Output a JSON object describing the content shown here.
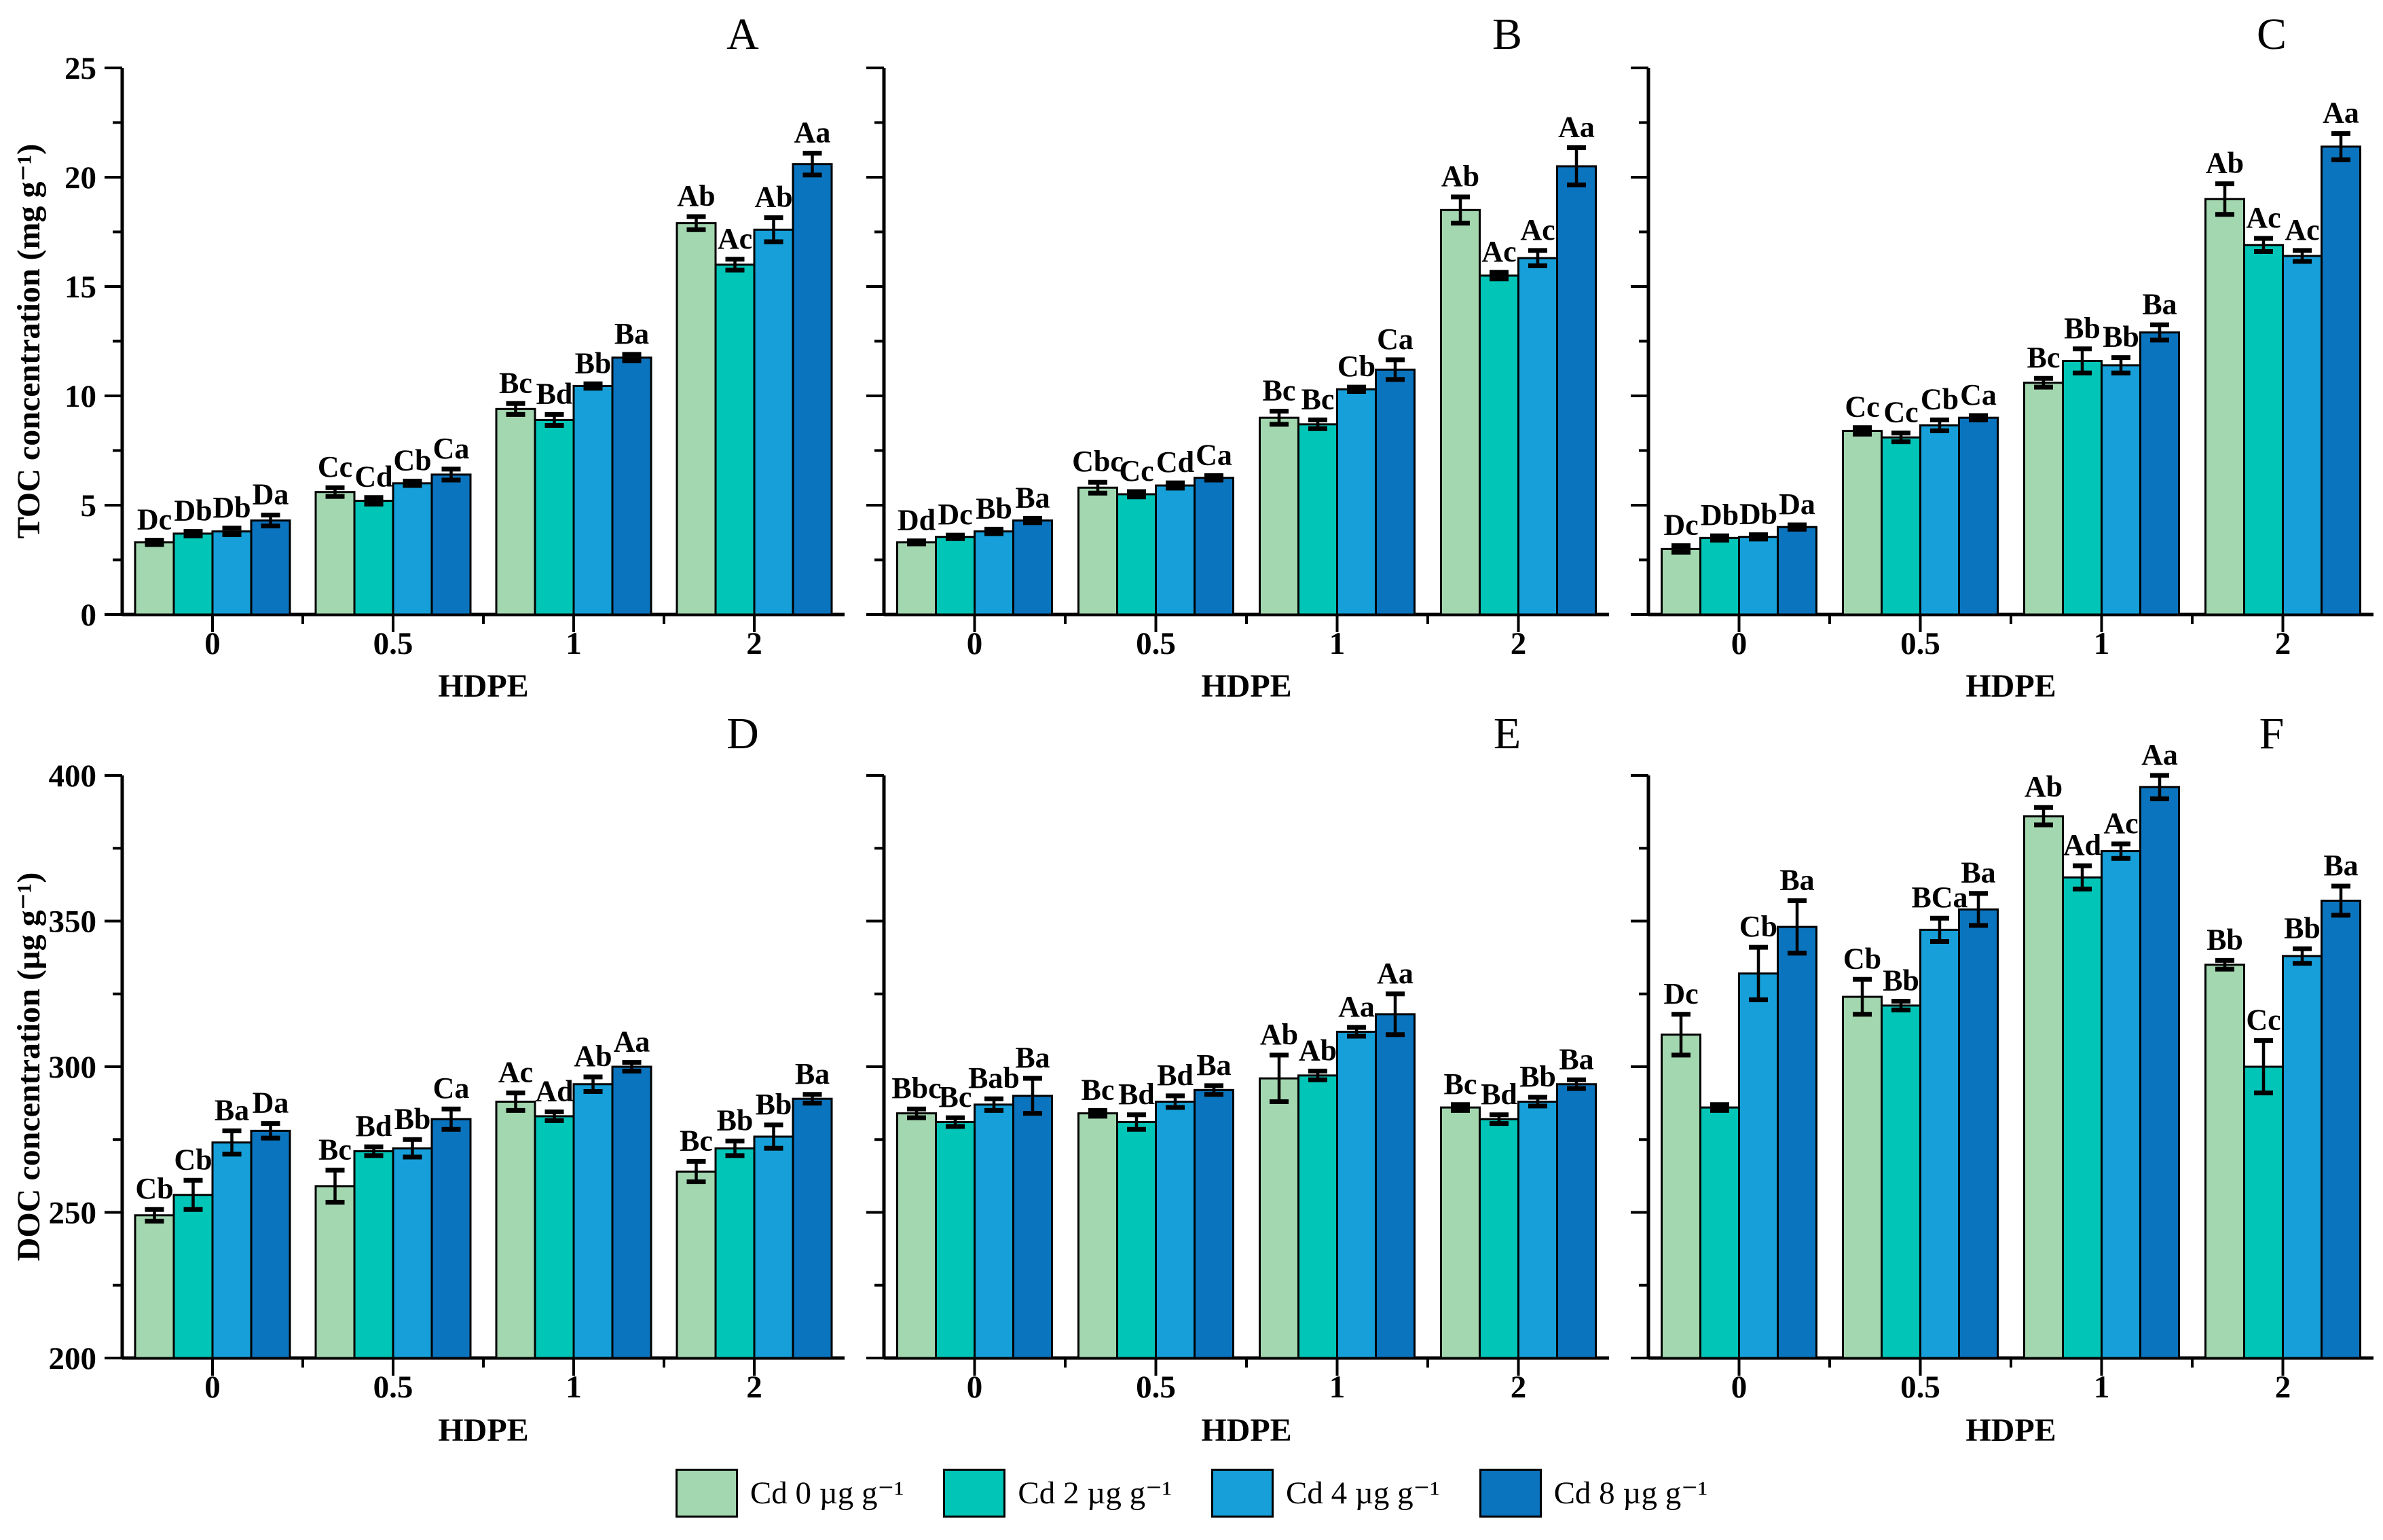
{
  "figure": {
    "background": "#ffffff",
    "axis_color": "#000000",
    "legend": [
      {
        "label": "Cd 0 µg g⁻¹",
        "color": "#a3d7b0"
      },
      {
        "label": "Cd 2 µg g⁻¹",
        "color": "#00c5b7"
      },
      {
        "label": "Cd 4 µg g⁻¹",
        "color": "#169fd8"
      },
      {
        "label": "Cd 8 µg g⁻¹",
        "color": "#0b74be"
      }
    ]
  },
  "chart_data": [
    {
      "id": "A",
      "type": "bar",
      "title": "A",
      "ylabel": "TOC concentration (mg g⁻¹)",
      "xlabel": "HDPE",
      "categories": [
        "0",
        "0.5",
        "1",
        "2"
      ],
      "ylim": [
        0,
        25
      ],
      "ytick_major": 5,
      "ytick_minor": 2.5,
      "show_y_tick_labels": true,
      "series": [
        {
          "name": "Cd 0 µg g⁻¹",
          "values": [
            3.3,
            5.6,
            9.4,
            17.9
          ],
          "errors": [
            0.1,
            0.2,
            0.25,
            0.3
          ],
          "letters": [
            "Dc",
            "Cc",
            "Bc",
            "Ab"
          ]
        },
        {
          "name": "Cd 2 µg g⁻¹",
          "values": [
            3.7,
            5.2,
            8.9,
            16.0
          ],
          "errors": [
            0.1,
            0.15,
            0.25,
            0.25
          ],
          "letters": [
            "Db",
            "Cd",
            "Bd",
            "Ac"
          ]
        },
        {
          "name": "Cd 4 µg g⁻¹",
          "values": [
            3.8,
            6.0,
            10.45,
            17.6
          ],
          "errors": [
            0.15,
            0.1,
            0.1,
            0.55
          ],
          "letters": [
            "Db",
            "Cb",
            "Bb",
            "Ab"
          ]
        },
        {
          "name": "Cd 8 µg g⁻¹",
          "values": [
            4.3,
            6.4,
            11.75,
            20.6
          ],
          "errors": [
            0.25,
            0.25,
            0.15,
            0.5
          ],
          "letters": [
            "Da",
            "Ca",
            "Ba",
            "Aa"
          ]
        }
      ]
    },
    {
      "id": "B",
      "type": "bar",
      "title": "B",
      "ylabel": "",
      "xlabel": "HDPE",
      "categories": [
        "0",
        "0.5",
        "1",
        "2"
      ],
      "ylim": [
        0,
        25
      ],
      "ytick_major": 5,
      "ytick_minor": 2.5,
      "show_y_tick_labels": false,
      "series": [
        {
          "name": "Cd 0 µg g⁻¹",
          "values": [
            3.3,
            5.8,
            9.0,
            18.5
          ],
          "errors": [
            0.07,
            0.25,
            0.3,
            0.6
          ],
          "letters": [
            "Dd",
            "Cbc",
            "Bc",
            "Ab"
          ]
        },
        {
          "name": "Cd 2 µg g⁻¹",
          "values": [
            3.55,
            5.5,
            8.7,
            15.5
          ],
          "errors": [
            0.08,
            0.12,
            0.2,
            0.15
          ],
          "letters": [
            "Dc",
            "Cc",
            "Bc",
            "Ac"
          ]
        },
        {
          "name": "Cd 4 µg g⁻¹",
          "values": [
            3.8,
            5.9,
            10.3,
            16.3
          ],
          "errors": [
            0.1,
            0.12,
            0.1,
            0.35
          ],
          "letters": [
            "Bb",
            "Cd",
            "Cb",
            "Ac"
          ]
        },
        {
          "name": "Cd 8 µg g⁻¹",
          "values": [
            4.3,
            6.25,
            11.2,
            20.5
          ],
          "errors": [
            0.1,
            0.1,
            0.45,
            0.85
          ],
          "letters": [
            "Ba",
            "Ca",
            "Ca",
            "Aa"
          ]
        }
      ]
    },
    {
      "id": "C",
      "type": "bar",
      "title": "C",
      "ylabel": "",
      "xlabel": "HDPE",
      "categories": [
        "0",
        "0.5",
        "1",
        "2"
      ],
      "ylim": [
        0,
        25
      ],
      "ytick_major": 5,
      "ytick_minor": 2.5,
      "show_y_tick_labels": false,
      "series": [
        {
          "name": "Cd 0 µg g⁻¹",
          "values": [
            3.0,
            8.4,
            10.6,
            19.0
          ],
          "errors": [
            0.15,
            0.15,
            0.2,
            0.7
          ],
          "letters": [
            "Dc",
            "Cc",
            "Bc",
            "Ab"
          ]
        },
        {
          "name": "Cd 2 µg g⁻¹",
          "values": [
            3.5,
            8.1,
            11.6,
            16.9
          ],
          "errors": [
            0.1,
            0.2,
            0.55,
            0.3
          ],
          "letters": [
            "Db",
            "Cc",
            "Bb",
            "Ac"
          ]
        },
        {
          "name": "Cd 4 µg g⁻¹",
          "values": [
            3.55,
            8.65,
            11.4,
            16.4
          ],
          "errors": [
            0.1,
            0.25,
            0.35,
            0.25
          ],
          "letters": [
            "Db",
            "Cb",
            "Bb",
            "Ac"
          ]
        },
        {
          "name": "Cd 8 µg g⁻¹",
          "values": [
            4.0,
            9.0,
            12.9,
            21.4
          ],
          "errors": [
            0.1,
            0.1,
            0.35,
            0.6
          ],
          "letters": [
            "Da",
            "Ca",
            "Ba",
            "Aa"
          ]
        }
      ]
    },
    {
      "id": "D",
      "type": "bar",
      "title": "D",
      "ylabel": "DOC concentration (µg g⁻¹)",
      "xlabel": "HDPE",
      "categories": [
        "0",
        "0.5",
        "1",
        "2"
      ],
      "ylim": [
        200,
        400
      ],
      "ytick_major": 50,
      "ytick_minor": 25,
      "show_y_tick_labels": true,
      "series": [
        {
          "name": "Cd 0 µg g⁻¹",
          "values": [
            249,
            259,
            288,
            264
          ],
          "errors": [
            2,
            5.5,
            3,
            3.5
          ],
          "letters": [
            "Cb",
            "Bc",
            "Ac",
            "Bc"
          ]
        },
        {
          "name": "Cd 2 µg g⁻¹",
          "values": [
            256,
            271,
            283,
            272
          ],
          "errors": [
            5,
            1.5,
            1.5,
            2.5
          ],
          "letters": [
            "Cb",
            "Bd",
            "Ad",
            "Bb"
          ]
        },
        {
          "name": "Cd 4 µg g⁻¹",
          "values": [
            274,
            272,
            294,
            276
          ],
          "errors": [
            4,
            3,
            2.5,
            4
          ],
          "letters": [
            "Ba",
            "Bb",
            "Ab",
            "Bb"
          ]
        },
        {
          "name": "Cd 8 µg g⁻¹",
          "values": [
            278,
            282,
            300,
            289
          ],
          "errors": [
            2.5,
            3.5,
            1.5,
            1.5
          ],
          "letters": [
            "Da",
            "Ca",
            "Aa",
            "Ba"
          ]
        }
      ]
    },
    {
      "id": "E",
      "type": "bar",
      "title": "E",
      "ylabel": "",
      "xlabel": "HDPE",
      "categories": [
        "0",
        "0.5",
        "1",
        "2"
      ],
      "ylim": [
        200,
        400
      ],
      "ytick_major": 50,
      "ytick_minor": 25,
      "show_y_tick_labels": false,
      "series": [
        {
          "name": "Cd 0 µg g⁻¹",
          "values": [
            284,
            284,
            296,
            286
          ],
          "errors": [
            1.5,
            1,
            8,
            1
          ],
          "letters": [
            "Bbc",
            "Bc",
            "Ab",
            "Bc"
          ]
        },
        {
          "name": "Cd 2 µg g⁻¹",
          "values": [
            281,
            281,
            297,
            282
          ],
          "errors": [
            1.5,
            2.5,
            1.5,
            1.5
          ],
          "letters": [
            "Bc",
            "Bd",
            "Ab",
            "Bd"
          ]
        },
        {
          "name": "Cd 4 µg g⁻¹",
          "values": [
            287,
            288,
            312,
            288
          ],
          "errors": [
            2,
            2,
            1.5,
            1.5
          ],
          "letters": [
            "Bab",
            "Bd",
            "Aa",
            "Bb"
          ]
        },
        {
          "name": "Cd 8 µg g⁻¹",
          "values": [
            290,
            292,
            318,
            294
          ],
          "errors": [
            6,
            1.5,
            7,
            1.5
          ],
          "letters": [
            "Ba",
            "Ba",
            "Aa",
            "Ba"
          ]
        }
      ]
    },
    {
      "id": "F",
      "type": "bar",
      "title": "F",
      "ylabel": "",
      "xlabel": "HDPE",
      "categories": [
        "0",
        "0.5",
        "1",
        "2"
      ],
      "ylim": [
        200,
        400
      ],
      "ytick_major": 50,
      "ytick_minor": 25,
      "show_y_tick_labels": false,
      "series": [
        {
          "name": "Cd 0 µg g⁻¹",
          "values": [
            311,
            324,
            386,
            335
          ],
          "errors": [
            7,
            6,
            3,
            1.5
          ],
          "letters": [
            "Dc",
            "Cb",
            "Ab",
            "Bb"
          ]
        },
        {
          "name": "Cd 2 µg g⁻¹",
          "values": [
            286,
            321,
            365,
            300
          ],
          "errors": [
            1,
            1.5,
            4,
            9
          ],
          "letters": [
            "",
            "Bb",
            "Ad",
            "Cc"
          ]
        },
        {
          "name": "Cd 4 µg g⁻¹",
          "values": [
            332,
            347,
            374,
            338
          ],
          "errors": [
            9,
            4,
            2.5,
            2.5
          ],
          "letters": [
            "Cb",
            "BCa",
            "Ac",
            "Bb"
          ]
        },
        {
          "name": "Cd 8 µg g⁻¹",
          "values": [
            348,
            354,
            396,
            357
          ],
          "errors": [
            9,
            5.5,
            4,
            5
          ],
          "letters": [
            "Ba",
            "Ba",
            "Aa",
            "Ba"
          ]
        }
      ]
    }
  ]
}
